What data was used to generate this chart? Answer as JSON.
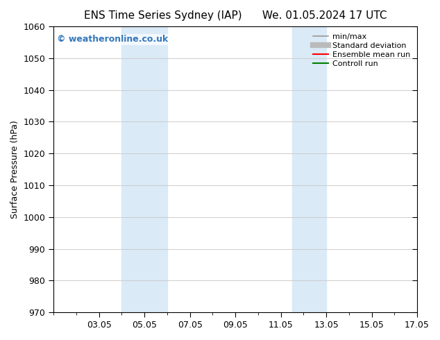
{
  "title_left": "ENS Time Series Sydney (IAP)",
  "title_right": "We. 01.05.2024 17 UTC",
  "ylabel": "Surface Pressure (hPa)",
  "ylim": [
    970,
    1060
  ],
  "yticks": [
    970,
    980,
    990,
    1000,
    1010,
    1020,
    1030,
    1040,
    1050,
    1060
  ],
  "xlim": [
    1.0,
    17.0
  ],
  "xtick_labels": [
    "03.05",
    "05.05",
    "07.05",
    "09.05",
    "11.05",
    "13.05",
    "15.05",
    "17.05"
  ],
  "xtick_positions": [
    3,
    5,
    7,
    9,
    11,
    13,
    15,
    17
  ],
  "shaded_bands": [
    {
      "x_start": 4.0,
      "x_end": 6.0,
      "color": "#daeaf7"
    },
    {
      "x_start": 11.5,
      "x_end": 13.0,
      "color": "#daeaf7"
    }
  ],
  "watermark": "© weatheronline.co.uk",
  "watermark_color": "#3377bb",
  "legend_items": [
    {
      "label": "min/max",
      "color": "#999999",
      "linestyle": "-",
      "linewidth": 1.2
    },
    {
      "label": "Standard deviation",
      "color": "#bbbbbb",
      "linestyle": "-",
      "linewidth": 6
    },
    {
      "label": "Ensemble mean run",
      "color": "#ff0000",
      "linestyle": "-",
      "linewidth": 1.5
    },
    {
      "label": "Controll run",
      "color": "#008000",
      "linestyle": "-",
      "linewidth": 1.5
    }
  ],
  "background_color": "#ffffff",
  "plot_background_color": "#ffffff",
  "grid_color": "#cccccc",
  "tick_color": "#000000",
  "font_size": 9,
  "title_font_size": 11,
  "title_font_family": "DejaVu Sans"
}
